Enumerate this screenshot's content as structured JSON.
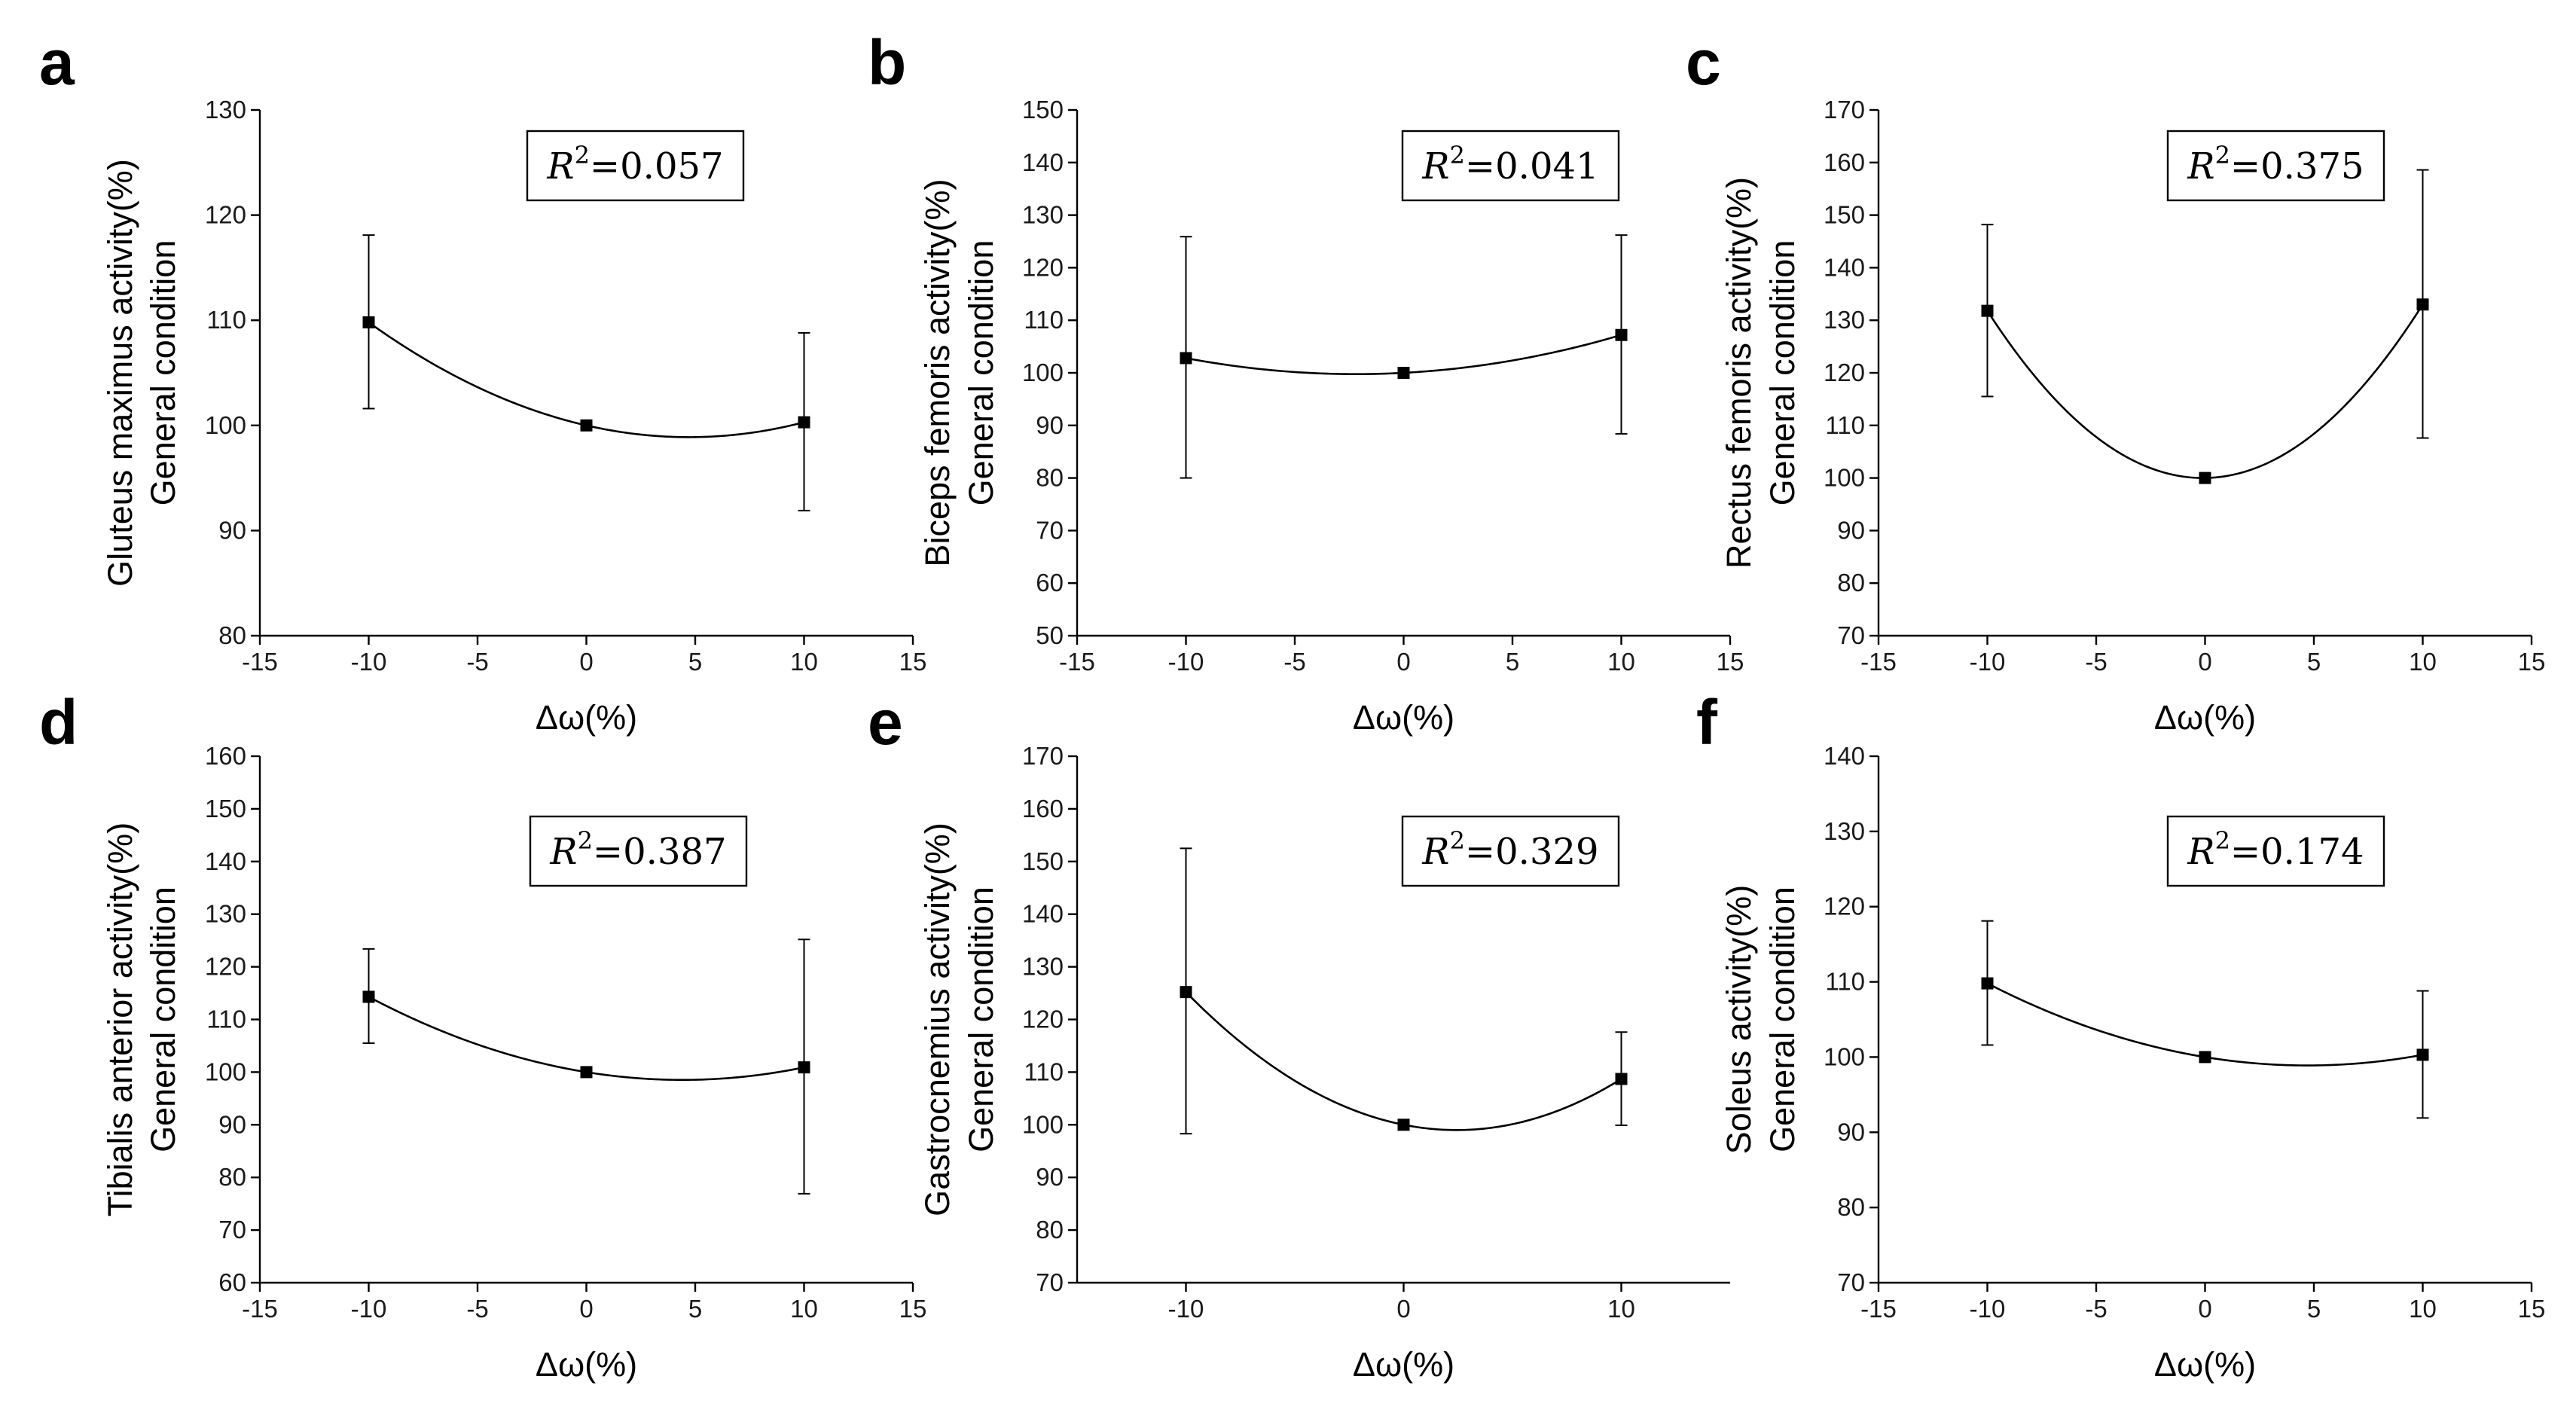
{
  "colors": {
    "mark": "#000000",
    "axis": "#000000",
    "background": "#ffffff"
  },
  "chart_data": [
    {
      "panel": "a",
      "type": "line",
      "ylabel_lines": [
        "Gluteus maximus activity(%)",
        "General condition"
      ],
      "xlabel": "Δω(%)",
      "xlim": [
        -15,
        15
      ],
      "ylim": [
        80,
        130
      ],
      "xticks": [
        -15,
        -10,
        -5,
        0,
        5,
        10,
        15
      ],
      "yticks": [
        80,
        90,
        100,
        110,
        120,
        130
      ],
      "points": [
        {
          "x": -10,
          "y": 109.8,
          "err_low": 101.6,
          "err_high": 118.1
        },
        {
          "x": 0,
          "y": 100.0
        },
        {
          "x": 10,
          "y": 100.3,
          "err_low": 91.9,
          "err_high": 108.8
        }
      ],
      "annotation": {
        "label": "R",
        "sup": "2",
        "value": "=0.057"
      }
    },
    {
      "panel": "b",
      "type": "line",
      "ylabel_lines": [
        "Biceps femoris activity(%)",
        "General condition"
      ],
      "xlabel": "Δω(%)",
      "xlim": [
        -15,
        15
      ],
      "ylim": [
        50,
        150
      ],
      "xticks": [
        -15,
        -10,
        -5,
        0,
        5,
        10,
        15
      ],
      "yticks": [
        50,
        60,
        70,
        80,
        90,
        100,
        110,
        120,
        130,
        140,
        150
      ],
      "points": [
        {
          "x": -10,
          "y": 102.8,
          "err_low": 80.0,
          "err_high": 125.9
        },
        {
          "x": 0,
          "y": 100.0
        },
        {
          "x": 10,
          "y": 107.2,
          "err_low": 88.4,
          "err_high": 126.2
        }
      ],
      "annotation": {
        "label": "R",
        "sup": "2",
        "value": "=0.041"
      }
    },
    {
      "panel": "c",
      "type": "line",
      "ylabel_lines": [
        "Rectus femoris activity(%)",
        "General condition"
      ],
      "xlabel": "Δω(%)",
      "xlim": [
        -15,
        15
      ],
      "ylim": [
        70,
        170
      ],
      "xticks": [
        -15,
        -10,
        -5,
        0,
        5,
        10,
        15
      ],
      "yticks": [
        70,
        80,
        90,
        100,
        110,
        120,
        130,
        140,
        150,
        160,
        170
      ],
      "points": [
        {
          "x": -10,
          "y": 131.8,
          "err_low": 115.5,
          "err_high": 148.2
        },
        {
          "x": 0,
          "y": 100.0
        },
        {
          "x": 10,
          "y": 133.0,
          "err_low": 107.6,
          "err_high": 158.6
        }
      ],
      "annotation": {
        "label": "R",
        "sup": "2",
        "value": "=0.375"
      }
    },
    {
      "panel": "d",
      "type": "line",
      "ylabel_lines": [
        "Tibialis anterior activity(%)",
        "General condition"
      ],
      "xlabel": "Δω(%)",
      "xlim": [
        -15,
        15
      ],
      "ylim": [
        60,
        160
      ],
      "xticks": [
        -15,
        -10,
        -5,
        0,
        5,
        10,
        15
      ],
      "yticks": [
        60,
        70,
        80,
        90,
        100,
        110,
        120,
        130,
        140,
        150,
        160
      ],
      "points": [
        {
          "x": -10,
          "y": 114.3,
          "err_low": 105.5,
          "err_high": 123.4
        },
        {
          "x": 0,
          "y": 100.0
        },
        {
          "x": 10,
          "y": 100.9,
          "err_low": 76.9,
          "err_high": 125.2
        }
      ],
      "annotation": {
        "label": "R",
        "sup": "2",
        "value": "=0.387"
      }
    },
    {
      "panel": "e",
      "type": "line",
      "ylabel_lines": [
        "Gastrocnemius activity(%)",
        "General condition"
      ],
      "xlabel": "Δω(%)",
      "xlim": [
        -15,
        15
      ],
      "ylim": [
        70,
        170
      ],
      "xticks": [
        -10,
        0,
        10
      ],
      "yticks": [
        70,
        80,
        90,
        100,
        110,
        120,
        130,
        140,
        150,
        160,
        170
      ],
      "points": [
        {
          "x": -10,
          "y": 125.2,
          "err_low": 98.3,
          "err_high": 152.5
        },
        {
          "x": 0,
          "y": 100.0
        },
        {
          "x": 10,
          "y": 108.7,
          "err_low": 99.9,
          "err_high": 117.6
        }
      ],
      "annotation": {
        "label": "R",
        "sup": "2",
        "value": "=0.329"
      }
    },
    {
      "panel": "f",
      "type": "line",
      "ylabel_lines": [
        "Soleus activity(%)",
        "General condition"
      ],
      "xlabel": "Δω(%)",
      "xlim": [
        -15,
        15
      ],
      "ylim": [
        70,
        140
      ],
      "xticks": [
        -15,
        -10,
        -5,
        0,
        5,
        10,
        15
      ],
      "yticks": [
        70,
        80,
        90,
        100,
        110,
        120,
        130,
        140
      ],
      "points": [
        {
          "x": -10,
          "y": 109.8,
          "err_low": 101.6,
          "err_high": 118.1
        },
        {
          "x": 0,
          "y": 100.0
        },
        {
          "x": 10,
          "y": 100.3,
          "err_low": 91.9,
          "err_high": 108.8
        }
      ],
      "annotation": {
        "label": "R",
        "sup": "2",
        "value": "=0.174"
      }
    }
  ]
}
